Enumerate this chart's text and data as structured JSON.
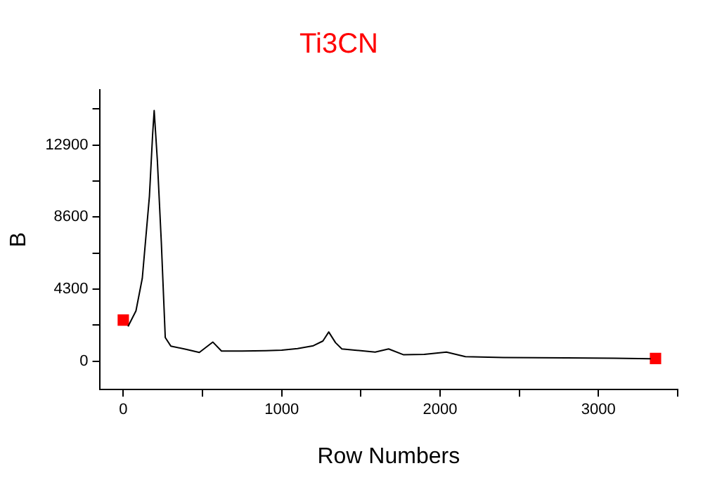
{
  "chart_data": {
    "type": "line",
    "title": "Ti3CN",
    "xlabel": "Row Numbers",
    "ylabel": "B",
    "xlim": [
      -150,
      3500
    ],
    "ylim": [
      -1700,
      16200
    ],
    "xticks": [
      0,
      {
        "value": 500,
        "label": null
      },
      1000,
      {
        "value": 1500,
        "label": null
      },
      2000,
      {
        "value": 2500,
        "label": null
      },
      3000,
      {
        "value": 3500,
        "label": null
      }
    ],
    "yticks": [
      0,
      {
        "value": 2150,
        "label": null
      },
      4300,
      {
        "value": 6450,
        "label": null
      },
      8600,
      {
        "value": 10750,
        "label": null
      },
      12900,
      {
        "value": 15050,
        "label": null
      }
    ],
    "grid": false,
    "legend": false,
    "marker": "none",
    "line_style": "solid",
    "series": [
      {
        "color": "#000000",
        "x": [
          30,
          80,
          120,
          165,
          185,
          195,
          215,
          240,
          265,
          300,
          400,
          480,
          565,
          620,
          750,
          900,
          1000,
          1100,
          1200,
          1260,
          1297,
          1340,
          1380,
          1500,
          1590,
          1675,
          1770,
          1900,
          2040,
          2160,
          2400,
          2800,
          3100,
          3330
        ],
        "values": [
          2070,
          3000,
          4950,
          9850,
          13500,
          14960,
          12000,
          7120,
          1410,
          900,
          700,
          520,
          1140,
          600,
          600,
          620,
          650,
          750,
          920,
          1200,
          1740,
          1100,
          730,
          620,
          540,
          730,
          380,
          400,
          540,
          270,
          220,
          190,
          170,
          140
        ]
      },
      {
        "type": "scatter",
        "marker": "square",
        "color": "#ff0000",
        "x": [
          0,
          3360
        ],
        "values": [
          2450,
          160
        ]
      }
    ]
  }
}
